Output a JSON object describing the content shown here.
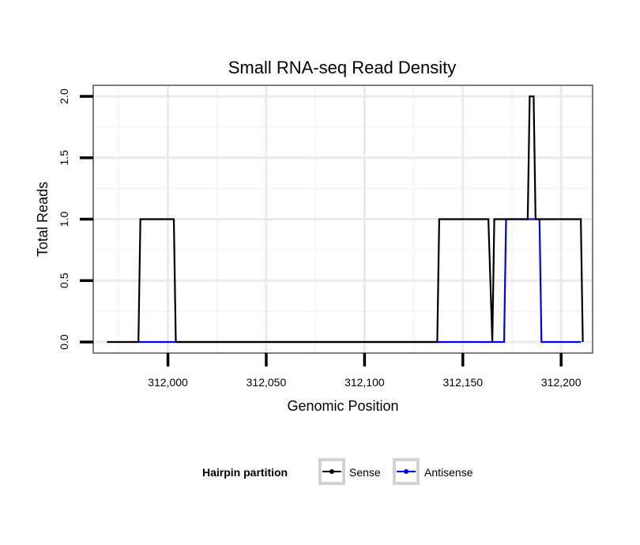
{
  "chart_data": {
    "type": "line",
    "title": "Small RNA-seq Read Density",
    "xlabel": "Genomic Position",
    "ylabel": "Total Reads",
    "xlim": [
      311962,
      312216
    ],
    "ylim": [
      -0.09,
      2.09
    ],
    "x_ticks": [
      312000,
      312050,
      312100,
      312150,
      312200
    ],
    "x_tick_labels": [
      "312,000",
      "312,050",
      "312,100",
      "312,150",
      "312,200"
    ],
    "y_ticks": [
      0,
      0.5,
      1,
      1.5,
      2
    ],
    "y_tick_labels": [
      "0.0",
      "0.5",
      "1.0",
      "1.5",
      "2.0"
    ],
    "grid": true,
    "legend": {
      "title": "Hairpin partition",
      "position": "bottom"
    },
    "series": [
      {
        "name": "Sense",
        "color": "#000000",
        "x": [
          311969,
          311985,
          311986,
          312003,
          312004,
          312137,
          312138,
          312163,
          312165,
          312166,
          312183,
          312184,
          312186,
          312187,
          312210,
          312211
        ],
        "y": [
          0,
          0,
          1,
          1,
          0,
          0,
          1,
          1,
          0,
          1,
          1,
          2,
          2,
          1,
          1,
          0
        ]
      },
      {
        "name": "Antisense",
        "color": "#0000ff",
        "x": [
          311985,
          312004,
          312137,
          312171,
          312172,
          312189,
          312190,
          312210
        ],
        "y": [
          0,
          0,
          0,
          0,
          1,
          1,
          0,
          0
        ]
      }
    ]
  }
}
